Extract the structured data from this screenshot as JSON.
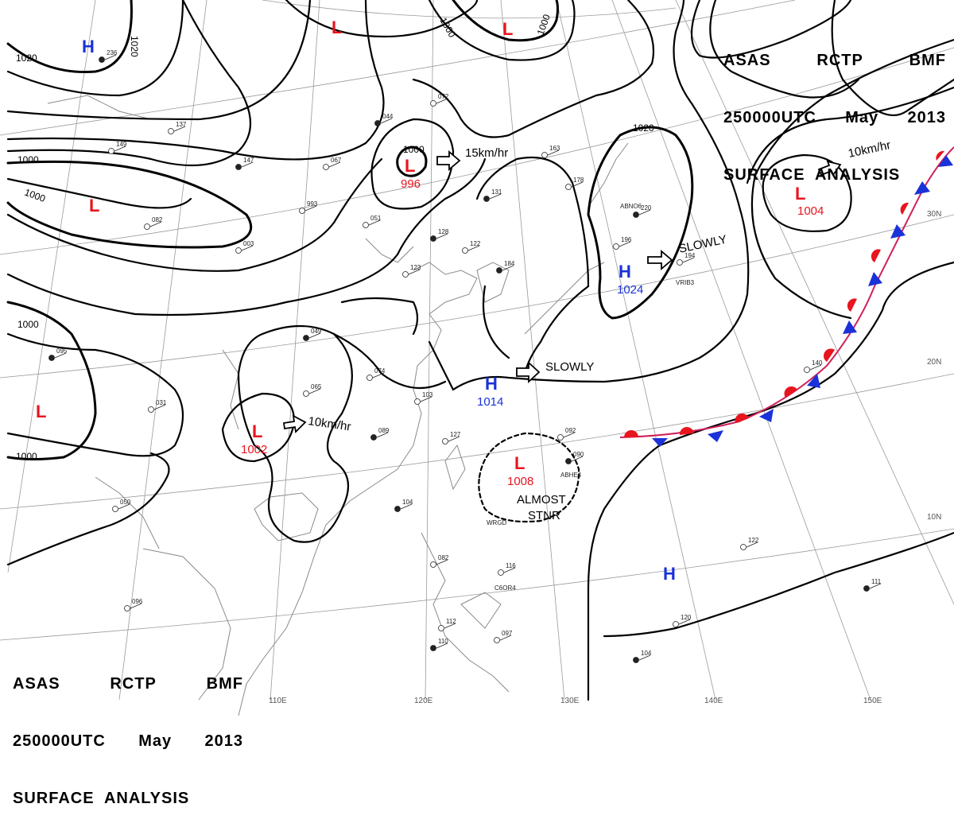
{
  "header": {
    "line1": [
      "ASAS",
      "RCTP",
      "BMF"
    ],
    "line2": [
      "250000UTC",
      "May",
      "2013"
    ],
    "line3": "SURFACE  ANALYSIS"
  },
  "colors": {
    "low": "#e8141e",
    "high": "#1a32d8",
    "isobar": "#000000",
    "grid": "#9a9a9a",
    "coast": "#8a8a8a",
    "cold_front": "#1a32d8",
    "warm_front": "#e8141e"
  },
  "pressure_centers": [
    {
      "id": "H-nw",
      "symbol": "H",
      "type": "high",
      "value": ""
    },
    {
      "id": "L-top1",
      "symbol": "L",
      "type": "low",
      "value": ""
    },
    {
      "id": "L-top2",
      "symbol": "L",
      "type": "low",
      "value": ""
    },
    {
      "id": "L-west",
      "symbol": "L",
      "type": "low",
      "value": ""
    },
    {
      "id": "L-996",
      "symbol": "L",
      "type": "low",
      "value": "996"
    },
    {
      "id": "L-1004",
      "symbol": "L",
      "type": "low",
      "value": "1004"
    },
    {
      "id": "H-1024",
      "symbol": "H",
      "type": "high",
      "value": "1024"
    },
    {
      "id": "L-sw",
      "symbol": "L",
      "type": "low",
      "value": ""
    },
    {
      "id": "L-1002",
      "symbol": "L",
      "type": "low",
      "value": "1002"
    },
    {
      "id": "H-1014",
      "symbol": "H",
      "type": "high",
      "value": "1014"
    },
    {
      "id": "L-1008",
      "symbol": "L",
      "type": "low",
      "value": "1008"
    },
    {
      "id": "H-south",
      "symbol": "H",
      "type": "high",
      "value": ""
    }
  ],
  "isobar_labels": [
    "1020",
    "1000",
    "1020",
    "1000",
    "1000",
    "1000",
    "1020",
    "1000"
  ],
  "motion_labels": [
    "15km/hr",
    "10km/hr",
    "SLOWLY",
    "SLOWLY",
    "10km/hr",
    "ALMOST",
    "STNR"
  ],
  "longitude_labels": [
    "110E",
    "120E",
    "130E",
    "140E",
    "150E"
  ],
  "latitude_labels": [
    "30N",
    "20N",
    "10N"
  ],
  "station_labels": [
    "236",
    "149",
    "137",
    "147",
    "993",
    "051",
    "044",
    "067",
    "072",
    "131",
    "163",
    "178",
    "128",
    "122",
    "123",
    "184",
    "003",
    "082",
    "049",
    "074",
    "103",
    "089",
    "065",
    "031",
    "095",
    "127",
    "092",
    "090",
    "116",
    "082",
    "104",
    "050",
    "096",
    "110",
    "112",
    "097",
    "104",
    "120",
    "122",
    "111",
    "196",
    "194",
    "220",
    "140"
  ],
  "ship_ids": [
    "ABNO6",
    "VRIB3",
    "ABHE4",
    "WRGD",
    "C6OR4"
  ]
}
